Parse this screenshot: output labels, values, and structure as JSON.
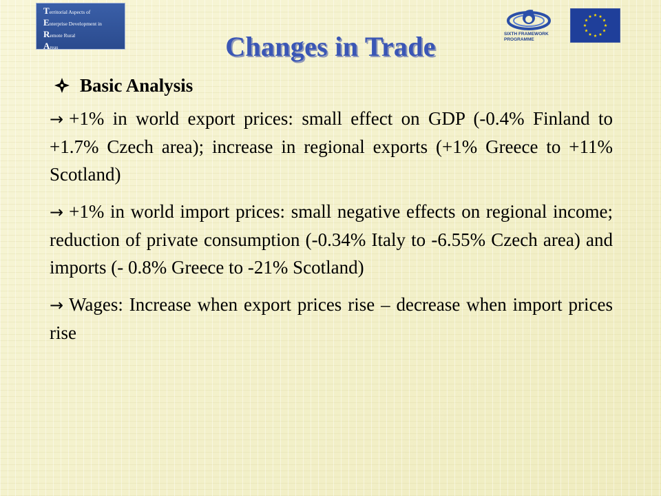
{
  "logo": {
    "lines": [
      {
        "cap": "T",
        "rest": "erritorial Aspects of"
      },
      {
        "cap": "E",
        "rest": "nterprise Development in"
      },
      {
        "cap": "R",
        "rest": "emote Rural"
      },
      {
        "cap": "A",
        "rest": "reas"
      }
    ]
  },
  "sponsor": {
    "label_line1": "SIXTH FRAMEWORK",
    "label_line2": "PROGRAMME",
    "flag_color": "#1f3f9a",
    "star_color": "#ffdd00"
  },
  "slide": {
    "title": "Changes in Trade",
    "heading": "Basic Analysis",
    "arrow_glyph": "→",
    "paragraphs": [
      "+1% in world export prices: small effect on GDP (-0.4% Finland to +1.7% Czech area); increase in regional exports (+1% Greece to +11% Scotland)",
      "+1% in world import prices: small negative effects on regional income; reduction of private consumption (-0.34% Italy to -6.55% Czech area) and imports (- 0.8% Greece to -21% Scotland)",
      "Wages: Increase when export prices rise – decrease when import prices rise"
    ]
  },
  "colors": {
    "title": "#3a56b5",
    "background": "#f4f2cc"
  }
}
